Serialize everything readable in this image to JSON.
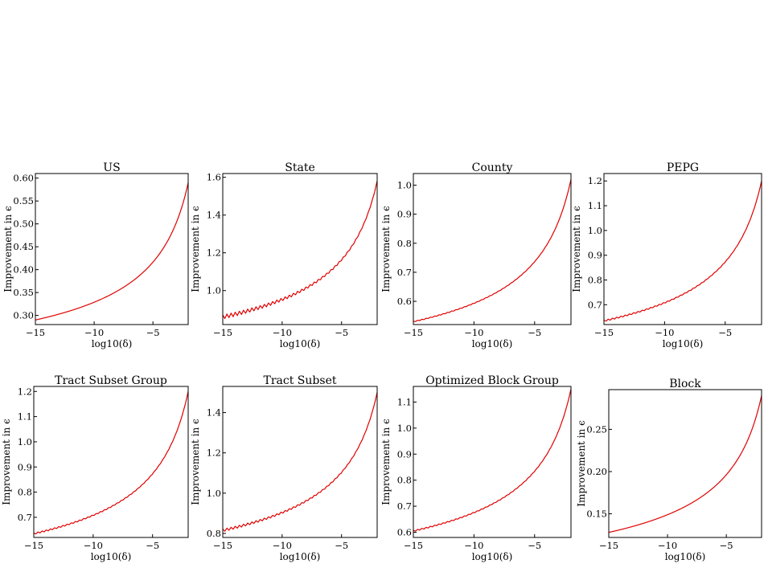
{
  "chart_data": [
    {
      "type": "line",
      "title": "US",
      "xlabel": "log10(δ)",
      "ylabel": "Improvement in ϵ",
      "xlim": [
        -15,
        -2
      ],
      "ylim": [
        0.28,
        0.61
      ],
      "xticks": [
        -15,
        -10,
        -5
      ],
      "xtick_labels": [
        "−15",
        "−10",
        "−5"
      ],
      "yticks": [
        0.3,
        0.35,
        0.4,
        0.45,
        0.5,
        0.55,
        0.6
      ],
      "ytick_labels": [
        "0.30",
        "0.35",
        "0.40",
        "0.45",
        "0.50",
        "0.55",
        "0.60"
      ],
      "y_start": 0.29,
      "y_end": 0.59,
      "ripple": 0,
      "color": "#e00000"
    },
    {
      "type": "line",
      "title": "State",
      "xlabel": "log10(δ)",
      "ylabel": "Improvement in ϵ",
      "xlim": [
        -15,
        -2
      ],
      "ylim": [
        0.82,
        1.62
      ],
      "xticks": [
        -15,
        -10,
        -5
      ],
      "xtick_labels": [
        "−15",
        "−10",
        "−5"
      ],
      "yticks": [
        1.0,
        1.2,
        1.4,
        1.6
      ],
      "ytick_labels": [
        "1.0",
        "1.2",
        "1.4",
        "1.6"
      ],
      "y_start": 0.86,
      "y_end": 1.58,
      "ripple": 0.022,
      "color": "#e00000"
    },
    {
      "type": "line",
      "title": "County",
      "xlabel": "log10(δ)",
      "ylabel": "Improvement in ϵ",
      "xlim": [
        -15,
        -2
      ],
      "ylim": [
        0.52,
        1.04
      ],
      "xticks": [
        -15,
        -10,
        -5
      ],
      "xtick_labels": [
        "−15",
        "−10",
        "−5"
      ],
      "yticks": [
        0.6,
        0.7,
        0.8,
        0.9,
        1.0
      ],
      "ytick_labels": [
        "0.6",
        "0.7",
        "0.8",
        "0.9",
        "1.0"
      ],
      "y_start": 0.53,
      "y_end": 1.02,
      "ripple": 0.003,
      "color": "#e00000"
    },
    {
      "type": "line",
      "title": "PEPG",
      "xlabel": "log10(δ)",
      "ylabel": "Improvement in ϵ",
      "xlim": [
        -15,
        -2
      ],
      "ylim": [
        0.62,
        1.23
      ],
      "xticks": [
        -15,
        -10,
        -5
      ],
      "xtick_labels": [
        "−15",
        "−10",
        "−5"
      ],
      "yticks": [
        0.7,
        0.8,
        0.9,
        1.0,
        1.1,
        1.2
      ],
      "ytick_labels": [
        "0.7",
        "0.8",
        "0.9",
        "1.0",
        "1.1",
        "1.2"
      ],
      "y_start": 0.635,
      "y_end": 1.2,
      "ripple": 0.006,
      "color": "#e00000"
    },
    {
      "type": "line",
      "title": "Tract Subset Group",
      "xlabel": "log10(δ)",
      "ylabel": "Improvement in ϵ",
      "xlim": [
        -15,
        -2
      ],
      "ylim": [
        0.62,
        1.22
      ],
      "xticks": [
        -15,
        -10,
        -5
      ],
      "xtick_labels": [
        "−15",
        "−10",
        "−5"
      ],
      "yticks": [
        0.7,
        0.8,
        0.9,
        1.0,
        1.1,
        1.2
      ],
      "ytick_labels": [
        "0.7",
        "0.8",
        "0.9",
        "1.0",
        "1.1",
        "1.2"
      ],
      "y_start": 0.635,
      "y_end": 1.2,
      "ripple": 0.006,
      "color": "#e00000"
    },
    {
      "type": "line",
      "title": "Tract Subset",
      "xlabel": "log10(δ)",
      "ylabel": "Improvement in ϵ",
      "xlim": [
        -15,
        -2
      ],
      "ylim": [
        0.78,
        1.53
      ],
      "xticks": [
        -15,
        -10,
        -5
      ],
      "xtick_labels": [
        "−15",
        "−10",
        "−5"
      ],
      "yticks": [
        0.8,
        1.0,
        1.2,
        1.4
      ],
      "ytick_labels": [
        "0.8",
        "1.0",
        "1.2",
        "1.4"
      ],
      "y_start": 0.815,
      "y_end": 1.5,
      "ripple": 0.013,
      "color": "#e00000"
    },
    {
      "type": "line",
      "title": "Optimized Block Group",
      "xlabel": "log10(δ)",
      "ylabel": "Improvement in ϵ",
      "xlim": [
        -15,
        -2
      ],
      "ylim": [
        0.58,
        1.16
      ],
      "xticks": [
        -15,
        -10,
        -5
      ],
      "xtick_labels": [
        "−15",
        "−10",
        "−5"
      ],
      "yticks": [
        0.6,
        0.7,
        0.8,
        0.9,
        1.0,
        1.1
      ],
      "ytick_labels": [
        "0.6",
        "0.7",
        "0.8",
        "0.9",
        "1.0",
        "1.1"
      ],
      "y_start": 0.605,
      "y_end": 1.15,
      "ripple": 0.005,
      "color": "#e00000"
    },
    {
      "type": "line",
      "title": "Block",
      "xlabel": "log10(δ)",
      "ylabel": "Improvement in ϵ",
      "xlim": [
        -15,
        -2
      ],
      "ylim": [
        0.122,
        0.297
      ],
      "xticks": [
        -15,
        -10,
        -5
      ],
      "xtick_labels": [
        "−15",
        "−10",
        "−5"
      ],
      "yticks": [
        0.15,
        0.2,
        0.25
      ],
      "ytick_labels": [
        "0.15",
        "0.20",
        "0.25"
      ],
      "y_start": 0.128,
      "y_end": 0.29,
      "ripple": 0,
      "color": "#e00000"
    }
  ]
}
